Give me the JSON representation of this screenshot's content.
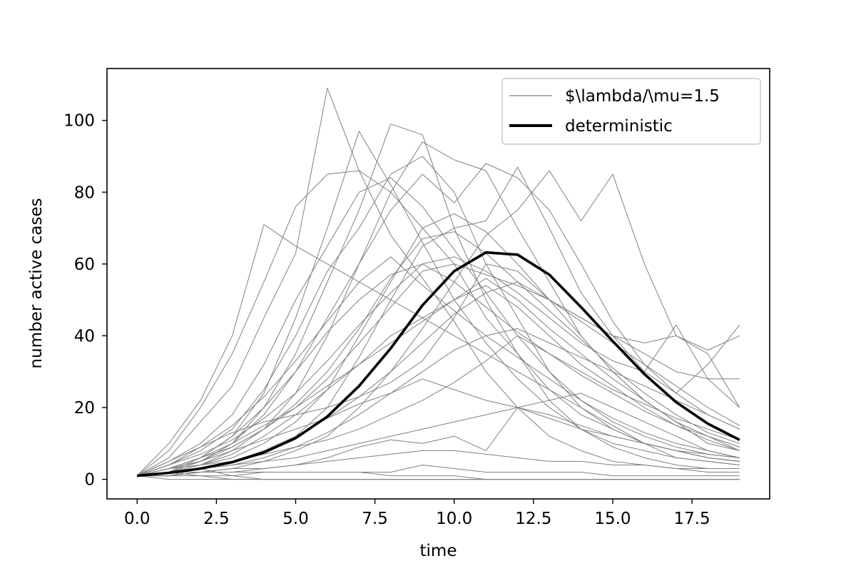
{
  "chart_data": {
    "type": "line",
    "xlabel": "time",
    "ylabel": "number active cases",
    "xlim": [
      -0.95,
      19.95
    ],
    "ylim": [
      -5.45,
      114.45
    ],
    "xticks": [
      "0.0",
      "2.5",
      "5.0",
      "7.5",
      "10.0",
      "12.5",
      "15.0",
      "17.5"
    ],
    "yticks": [
      "0",
      "20",
      "40",
      "60",
      "80",
      "100"
    ],
    "legend_position": "top-right",
    "colors": {
      "stochastic": "#808080",
      "deterministic": "#000000"
    },
    "legend": [
      {
        "label": "$\\lambda/\\mu=1.5",
        "style": "thin-gray"
      },
      {
        "label": "deterministic",
        "style": "thick-black"
      }
    ],
    "x": [
      0,
      1,
      2,
      3,
      4,
      5,
      6,
      7,
      8,
      9,
      10,
      11,
      12,
      13,
      14,
      15,
      16,
      17,
      18,
      19
    ],
    "deterministic": {
      "name": "deterministic",
      "values": [
        1,
        1.8,
        3,
        4.8,
        7.5,
        11.5,
        17.5,
        26,
        36.5,
        48.5,
        58,
        63.2,
        62.6,
        57,
        48,
        38.5,
        29.3,
        21.5,
        15.5,
        11
      ]
    },
    "stochastic_series": [
      [
        1,
        6,
        16,
        26,
        45,
        63,
        109,
        86,
        68,
        56,
        44,
        30,
        20,
        12,
        8,
        5,
        4,
        3,
        2,
        2
      ],
      [
        1,
        3,
        6,
        12,
        24,
        45,
        70,
        97,
        82,
        66,
        50,
        38,
        28,
        20,
        14,
        10,
        8,
        6,
        5,
        4
      ],
      [
        1,
        8,
        20,
        35,
        55,
        76,
        85,
        86,
        80,
        70,
        60,
        45,
        35,
        25,
        18,
        14,
        10,
        8,
        7,
        6
      ],
      [
        1,
        5,
        10,
        18,
        32,
        50,
        65,
        80,
        84,
        76,
        64,
        52,
        40,
        30,
        22,
        16,
        12,
        9,
        7,
        6
      ],
      [
        1,
        2,
        5,
        10,
        20,
        35,
        55,
        75,
        99,
        96,
        70,
        50,
        35,
        22,
        14,
        9,
        6,
        4,
        3,
        3
      ],
      [
        1,
        4,
        8,
        14,
        25,
        40,
        58,
        70,
        85,
        90,
        80,
        60,
        45,
        30,
        20,
        14,
        10,
        6,
        5,
        4
      ],
      [
        1,
        10,
        22,
        40,
        71,
        65,
        60,
        55,
        50,
        45,
        40,
        35,
        30,
        25,
        20,
        15,
        10,
        8,
        6,
        5
      ],
      [
        1,
        2,
        4,
        8,
        14,
        24,
        40,
        60,
        80,
        94,
        89,
        86,
        70,
        55,
        40,
        30,
        22,
        16,
        12,
        9
      ],
      [
        1,
        3,
        5,
        10,
        18,
        30,
        45,
        60,
        75,
        85,
        77,
        88,
        84,
        75,
        60,
        44,
        32,
        24,
        18,
        14
      ],
      [
        1,
        2,
        3,
        5,
        8,
        12,
        20,
        34,
        50,
        65,
        70,
        72,
        87,
        70,
        52,
        40,
        30,
        24,
        32,
        43
      ],
      [
        1,
        1,
        2,
        3,
        5,
        8,
        12,
        20,
        30,
        42,
        55,
        68,
        75,
        86,
        72,
        85,
        60,
        40,
        36,
        40
      ],
      [
        1,
        2,
        4,
        6,
        10,
        16,
        25,
        40,
        55,
        70,
        74,
        69,
        60,
        50,
        45,
        40,
        35,
        30,
        28,
        28
      ],
      [
        1,
        3,
        6,
        9,
        14,
        20,
        28,
        38,
        48,
        58,
        60,
        57,
        54,
        50,
        45,
        40,
        38,
        40,
        35,
        20
      ],
      [
        1,
        4,
        7,
        11,
        17,
        24,
        33,
        43,
        52,
        60,
        62,
        58,
        52,
        45,
        38,
        33,
        30,
        43,
        28,
        20
      ],
      [
        1,
        2,
        3,
        4,
        6,
        9,
        13,
        18,
        24,
        30,
        36,
        40,
        42,
        38,
        34,
        30,
        26,
        22,
        18,
        14
      ],
      [
        1,
        5,
        9,
        13,
        16,
        18,
        20,
        23,
        27,
        33,
        45,
        60,
        58,
        50,
        40,
        30,
        22,
        16,
        10,
        8
      ],
      [
        1,
        2,
        4,
        7,
        12,
        18,
        25,
        32,
        40,
        45,
        50,
        56,
        50,
        42,
        35,
        28,
        22,
        16,
        12,
        8
      ],
      [
        1,
        3,
        5,
        8,
        11,
        14,
        17,
        21,
        24,
        28,
        25,
        22,
        20,
        18,
        15,
        12,
        10,
        8,
        6,
        5
      ],
      [
        1,
        2,
        3,
        4,
        5,
        6,
        8,
        10,
        12,
        14,
        16,
        18,
        20,
        22,
        24,
        20,
        16,
        12,
        8,
        6
      ],
      [
        1,
        1,
        2,
        2,
        3,
        4,
        6,
        9,
        11,
        10,
        12,
        8,
        20,
        17,
        14,
        12,
        10,
        8,
        6,
        5
      ],
      [
        1,
        2,
        2,
        3,
        3,
        4,
        5,
        6,
        7,
        8,
        8,
        7,
        6,
        5,
        5,
        4,
        4,
        3,
        3,
        3
      ],
      [
        1,
        1,
        2,
        2,
        2,
        2,
        2,
        2,
        2,
        4,
        3,
        2,
        2,
        2,
        2,
        1,
        1,
        1,
        1,
        1
      ],
      [
        1,
        2,
        1,
        1,
        2,
        2,
        2,
        2,
        1,
        1,
        1,
        0,
        0,
        0,
        0,
        0,
        0,
        0,
        0,
        0
      ],
      [
        1,
        1,
        1,
        0,
        0,
        0,
        0,
        0,
        0,
        0,
        0,
        0,
        0,
        0,
        0,
        0,
        0,
        0,
        0,
        0
      ],
      [
        1,
        0,
        0,
        0,
        0,
        0,
        0,
        0,
        0,
        0,
        0,
        0,
        0,
        0,
        0,
        0,
        0,
        0,
        0,
        0
      ],
      [
        1,
        2,
        3,
        1,
        0,
        0,
        0,
        0,
        0,
        0,
        0,
        0,
        0,
        0,
        0,
        0,
        0,
        0,
        0,
        0
      ],
      [
        1,
        3,
        6,
        10,
        15,
        20,
        26,
        32,
        38,
        44,
        50,
        54,
        48,
        40,
        32,
        26,
        20,
        15,
        11,
        8
      ],
      [
        1,
        2,
        5,
        9,
        14,
        21,
        30,
        42,
        56,
        67,
        69,
        63,
        55,
        47,
        39,
        31,
        24,
        18,
        13,
        10
      ],
      [
        1,
        4,
        9,
        15,
        23,
        33,
        44,
        55,
        62,
        54,
        47,
        40,
        34,
        28,
        22,
        17,
        13,
        10,
        8,
        6
      ],
      [
        1,
        3,
        4,
        5,
        7,
        9,
        11,
        14,
        18,
        22,
        27,
        33,
        40,
        35,
        30,
        25,
        21,
        17,
        14,
        11
      ],
      [
        1,
        2,
        6,
        12,
        20,
        30,
        41,
        50,
        57,
        60,
        55,
        48,
        41,
        35,
        29,
        24,
        19,
        15,
        12,
        9
      ],
      [
        1,
        1,
        3,
        5,
        8,
        12,
        17,
        23,
        30,
        38,
        46,
        52,
        55,
        50,
        44,
        38,
        32,
        26,
        20,
        15
      ]
    ]
  }
}
